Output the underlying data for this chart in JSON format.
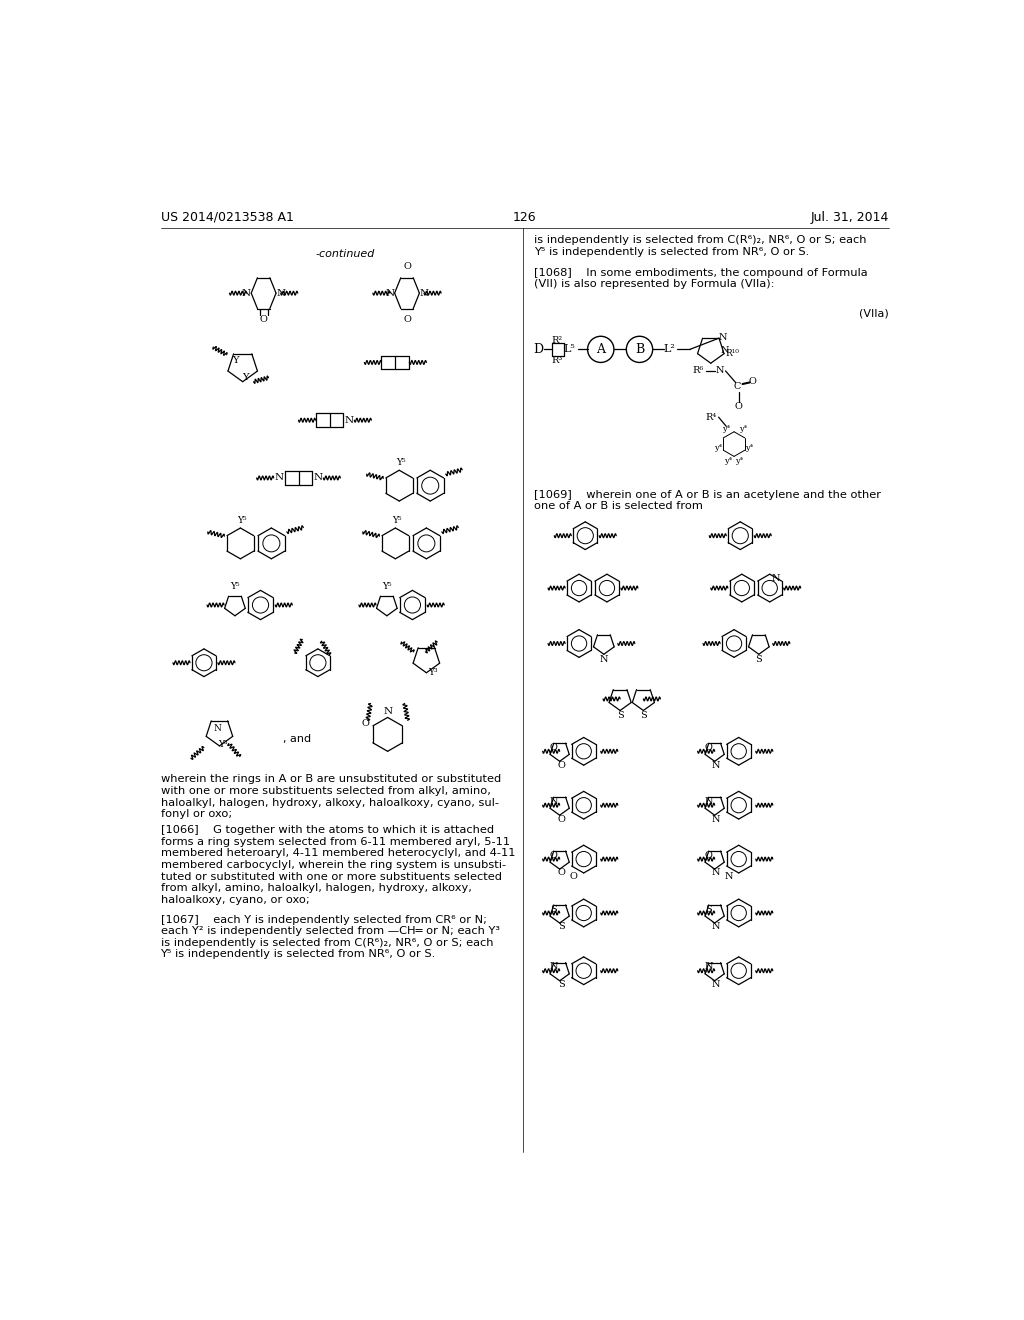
{
  "page_number": "126",
  "patent_number": "US 2014/0213538 A1",
  "date": "Jul. 31, 2014",
  "background_color": "#ffffff",
  "figsize": [
    10.24,
    13.2
  ],
  "dpi": 100
}
